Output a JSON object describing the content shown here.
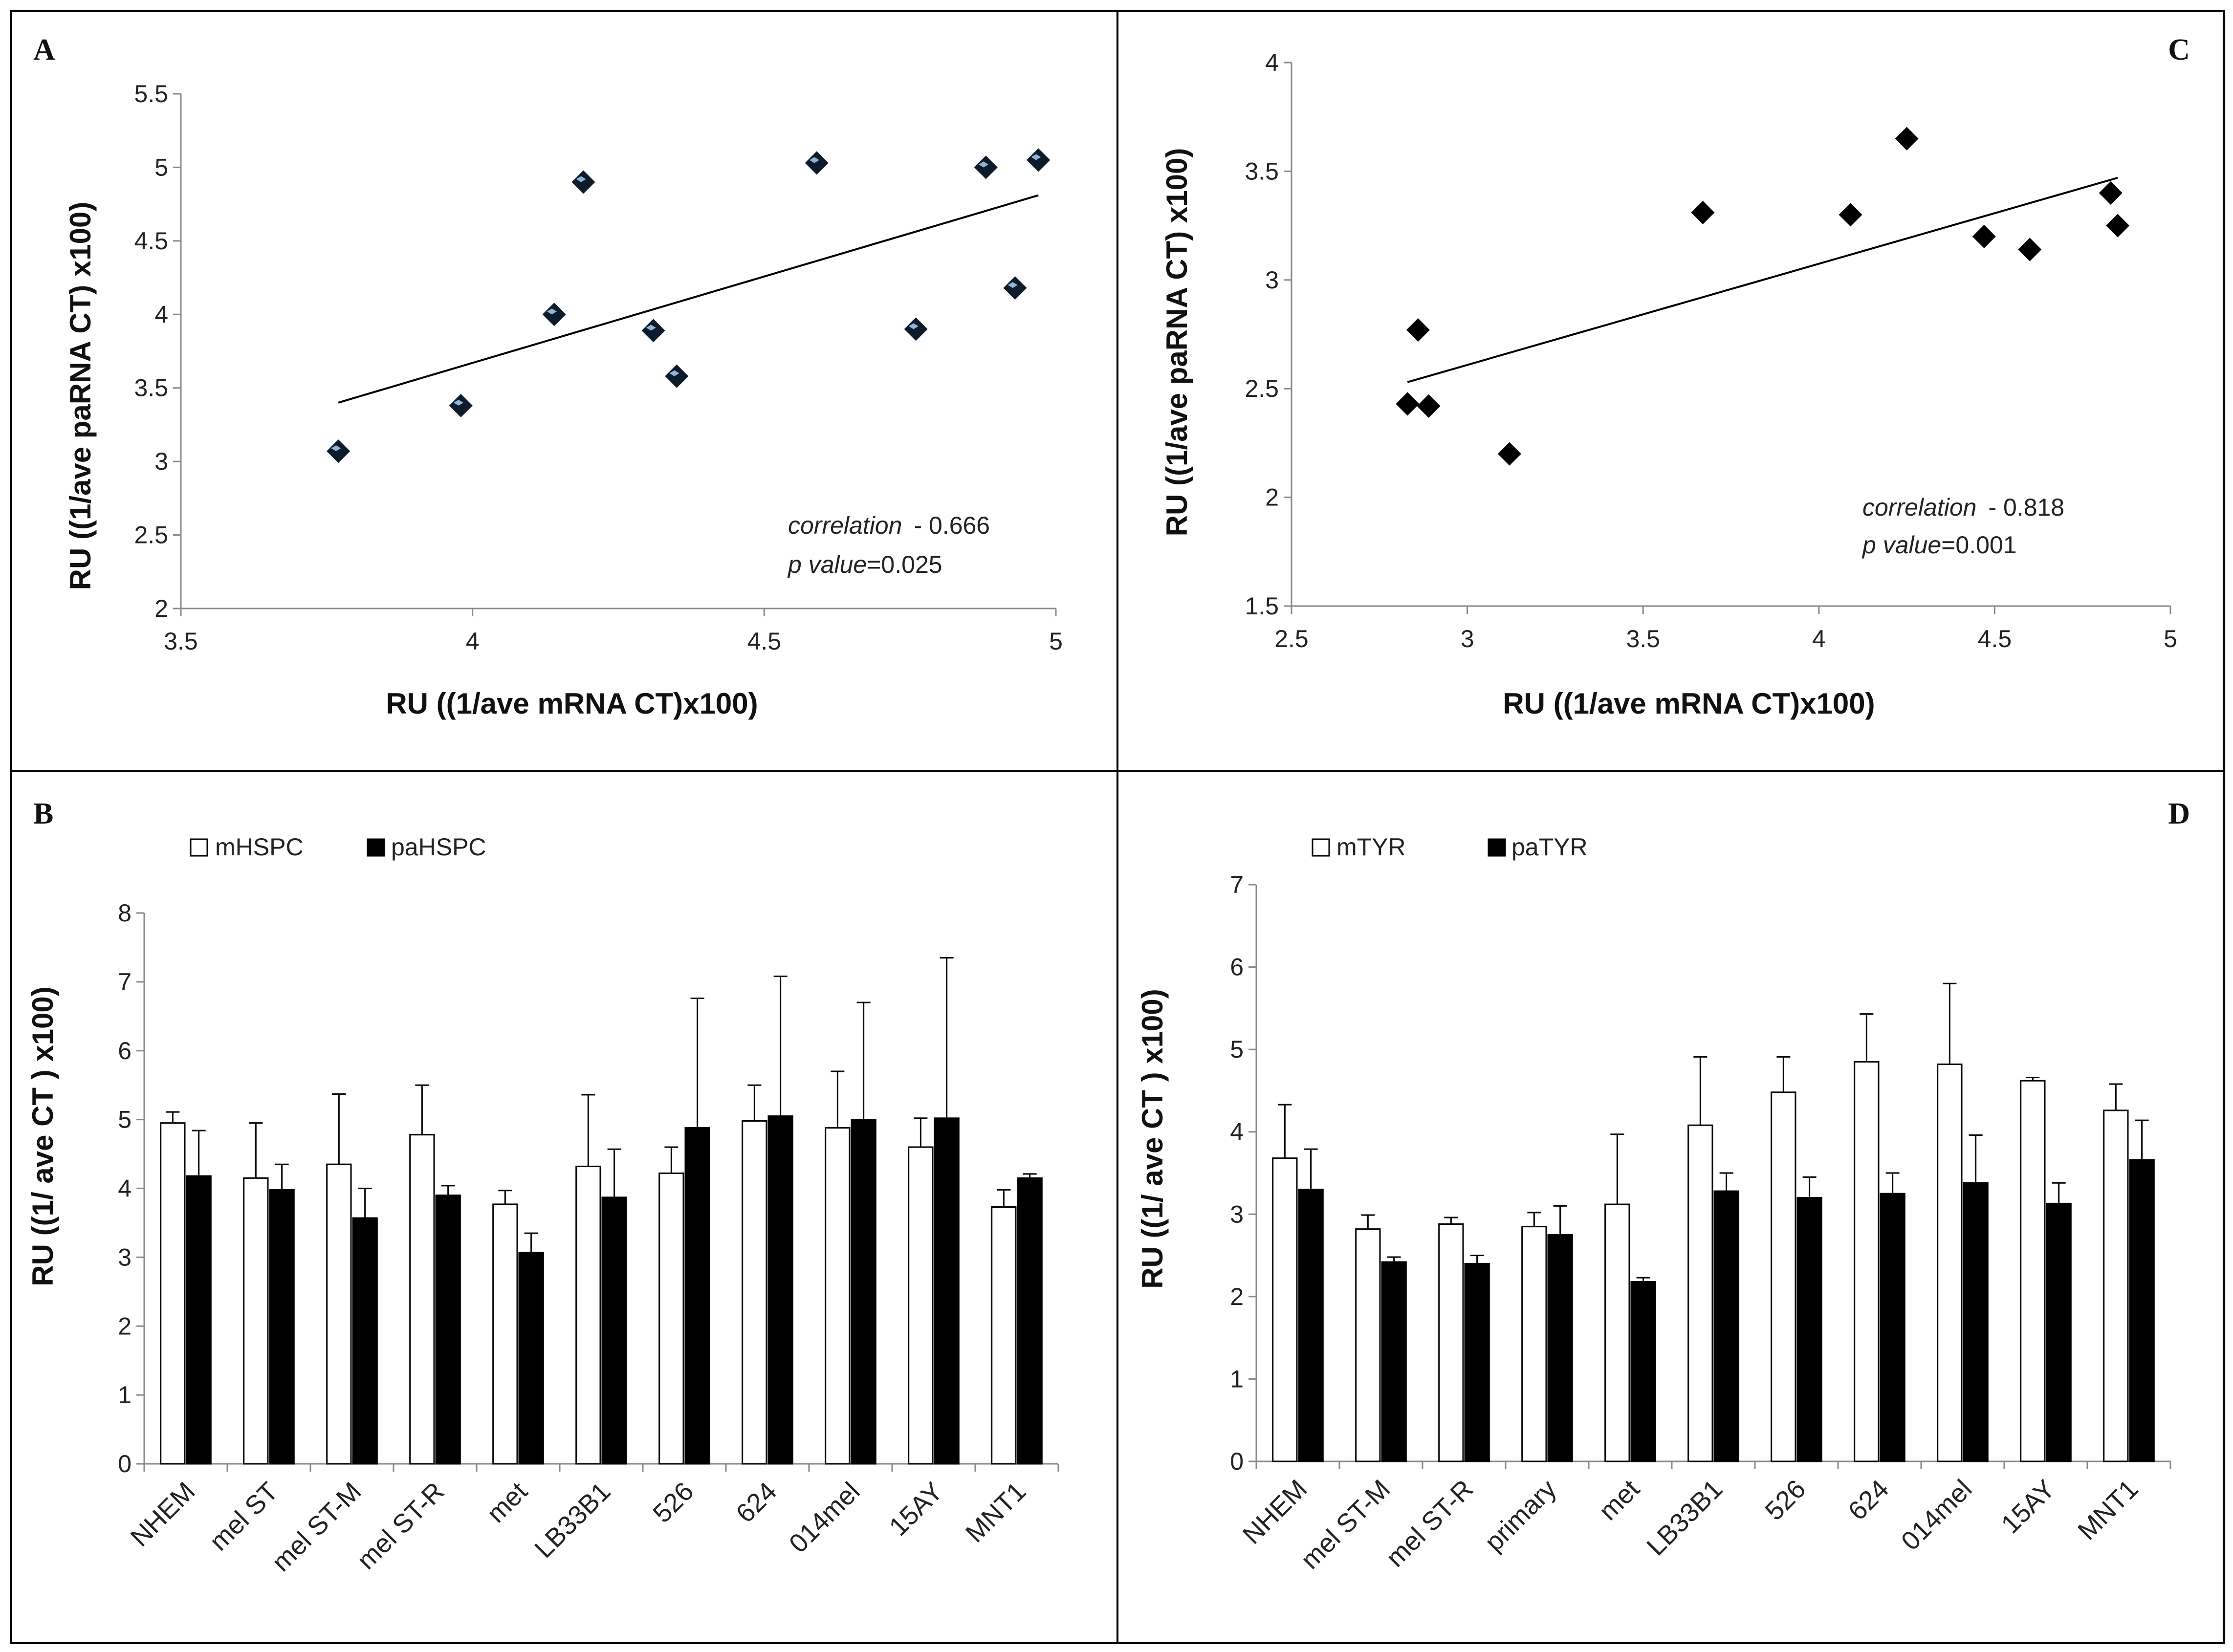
{
  "chart_data": [
    {
      "panel": "A",
      "type": "scatter",
      "xlabel": "RU ((1/ave mRNA CT)x100)",
      "ylabel": "RU ((1/ave paRNA CT) x100)",
      "xlim": [
        3.5,
        5
      ],
      "ylim": [
        2,
        5.5
      ],
      "xticks": [
        "3.5",
        "4",
        "4.5",
        "5"
      ],
      "yticks": [
        "2",
        "2.5",
        "3",
        "3.5",
        "4",
        "4.5",
        "5",
        "5.5"
      ],
      "grid": false,
      "marker_color": "#0d1b2a",
      "marker_highlight": "#8fb4d8",
      "points": [
        {
          "x": 3.77,
          "y": 3.07
        },
        {
          "x": 3.98,
          "y": 3.38
        },
        {
          "x": 4.14,
          "y": 4.0
        },
        {
          "x": 4.19,
          "y": 4.9
        },
        {
          "x": 4.31,
          "y": 3.89
        },
        {
          "x": 4.35,
          "y": 3.58
        },
        {
          "x": 4.59,
          "y": 5.03
        },
        {
          "x": 4.76,
          "y": 3.9
        },
        {
          "x": 4.88,
          "y": 5.0
        },
        {
          "x": 4.93,
          "y": 4.18
        },
        {
          "x": 4.97,
          "y": 5.05
        }
      ],
      "trendline": {
        "x": [
          3.77,
          4.97
        ],
        "y": [
          3.4,
          4.81
        ]
      },
      "annotation": {
        "correlation_label": "correlation",
        "correlation_value": "- 0.666",
        "p_label": "p value",
        "p_value": "=0.025"
      }
    },
    {
      "panel": "C",
      "type": "scatter",
      "xlabel": "RU ((1/ave mRNA CT)x100)",
      "ylabel": "RU ((1/ave paRNA CT) x100)",
      "xlim": [
        2.5,
        5
      ],
      "ylim": [
        1.5,
        4
      ],
      "xticks": [
        "2.5",
        "3",
        "3.5",
        "4",
        "4.5",
        "5"
      ],
      "yticks": [
        "1.5",
        "2",
        "2.5",
        "3",
        "3.5",
        "4"
      ],
      "grid": false,
      "marker_color": "#000000",
      "points": [
        {
          "x": 2.83,
          "y": 2.43
        },
        {
          "x": 2.86,
          "y": 2.77
        },
        {
          "x": 2.89,
          "y": 2.42
        },
        {
          "x": 3.12,
          "y": 2.2
        },
        {
          "x": 3.67,
          "y": 3.31
        },
        {
          "x": 4.09,
          "y": 3.3
        },
        {
          "x": 4.25,
          "y": 3.65
        },
        {
          "x": 4.47,
          "y": 3.2
        },
        {
          "x": 4.6,
          "y": 3.14
        },
        {
          "x": 4.83,
          "y": 3.4
        },
        {
          "x": 4.85,
          "y": 3.25
        }
      ],
      "trendline": {
        "x": [
          2.83,
          4.85
        ],
        "y": [
          2.53,
          3.47
        ]
      },
      "annotation": {
        "correlation_label": "correlation",
        "correlation_value": "- 0.818",
        "p_label": "p value",
        "p_value": "=0.001"
      }
    },
    {
      "panel": "B",
      "type": "bar",
      "ylabel": "RU ((1/ ave CT ) x100)",
      "ylim": [
        0,
        8
      ],
      "yticks": [
        "0",
        "1",
        "2",
        "3",
        "4",
        "5",
        "6",
        "7",
        "8"
      ],
      "grid": false,
      "legend_position": "top-left",
      "categories": [
        "NHEM",
        "mel ST",
        "mel ST-M",
        "mel ST-R",
        "met",
        "LB33B1",
        "526",
        "624",
        "014mel",
        "15AY",
        "MNT1"
      ],
      "series": [
        {
          "name": "mHSPC",
          "fill": "#ffffff",
          "values": [
            4.95,
            4.15,
            4.35,
            4.78,
            3.77,
            4.32,
            4.22,
            4.98,
            4.88,
            4.6,
            3.73
          ],
          "errors": [
            0.16,
            0.8,
            1.02,
            0.72,
            0.2,
            1.04,
            0.38,
            0.52,
            0.82,
            0.42,
            0.25
          ]
        },
        {
          "name": "paHSPC",
          "fill": "#000000",
          "values": [
            4.18,
            3.98,
            3.57,
            3.9,
            3.07,
            3.87,
            4.88,
            5.05,
            5.0,
            5.02,
            4.15
          ],
          "errors": [
            0.66,
            0.37,
            0.43,
            0.14,
            0.28,
            0.7,
            1.88,
            2.03,
            1.7,
            2.33,
            0.06
          ]
        }
      ]
    },
    {
      "panel": "D",
      "type": "bar",
      "ylabel": "RU ((1/ ave CT ) x100)",
      "ylim": [
        0,
        7
      ],
      "yticks": [
        "0",
        "1",
        "2",
        "3",
        "4",
        "5",
        "6",
        "7"
      ],
      "grid": false,
      "legend_position": "top-left",
      "categories": [
        "NHEM",
        "mel ST-M",
        "mel ST-R",
        "primary",
        "met",
        "LB33B1",
        "526",
        "624",
        "014mel",
        "15AY",
        "MNT1"
      ],
      "series": [
        {
          "name": "mTYR",
          "fill": "#ffffff",
          "values": [
            3.68,
            2.82,
            2.88,
            2.85,
            3.12,
            4.08,
            4.48,
            4.85,
            4.82,
            4.62,
            4.26
          ],
          "errors": [
            0.65,
            0.17,
            0.08,
            0.17,
            0.85,
            0.83,
            0.43,
            0.58,
            0.98,
            0.04,
            0.32
          ]
        },
        {
          "name": "paTYR",
          "fill": "#000000",
          "values": [
            3.3,
            2.42,
            2.4,
            2.75,
            2.18,
            3.28,
            3.2,
            3.25,
            3.38,
            3.13,
            3.66
          ],
          "errors": [
            0.49,
            0.06,
            0.1,
            0.35,
            0.05,
            0.22,
            0.25,
            0.25,
            0.58,
            0.25,
            0.48
          ]
        }
      ]
    }
  ]
}
